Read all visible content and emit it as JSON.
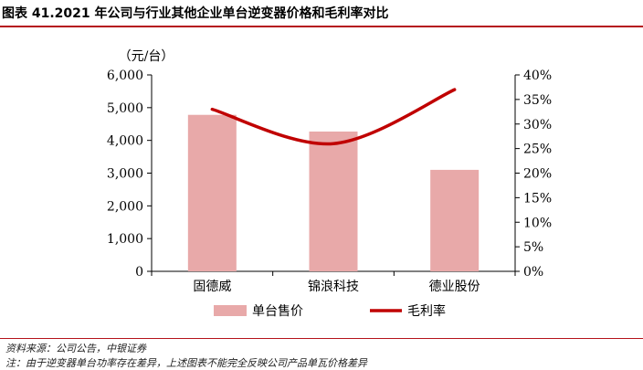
{
  "title": "图表 41.2021 年公司与行业其他企业单台逆变器价格和毛利率对比",
  "source": "资料来源：公司公告，中银证券",
  "note": "注：由于逆变器单台功率存在差异，上述图表不能完全反映公司产品单瓦价格差异",
  "colors": {
    "bar": "#e8a9a9",
    "line": "#c00000",
    "rule": "#b5121b"
  },
  "chart_data": {
    "type": "bar+line",
    "categories": [
      "固德威",
      "锦浪科技",
      "德业股份"
    ],
    "series": [
      {
        "name": "单台售价",
        "type": "bar",
        "axis": "left",
        "values": [
          4780,
          4270,
          3100
        ]
      },
      {
        "name": "毛利率",
        "type": "line",
        "axis": "right",
        "smooth": true,
        "values": [
          0.33,
          0.26,
          0.37
        ]
      }
    ],
    "y_unit_label": "（元/台）",
    "ylim": [
      0,
      6000
    ],
    "yticks": [
      "0",
      "1,000",
      "2,000",
      "3,000",
      "4,000",
      "5,000",
      "6,000"
    ],
    "y2lim": [
      0,
      0.4
    ],
    "y2ticks": [
      "0%",
      "5%",
      "10%",
      "15%",
      "20%",
      "25%",
      "30%",
      "35%",
      "40%"
    ],
    "legend_position": "bottom",
    "grid": false
  }
}
